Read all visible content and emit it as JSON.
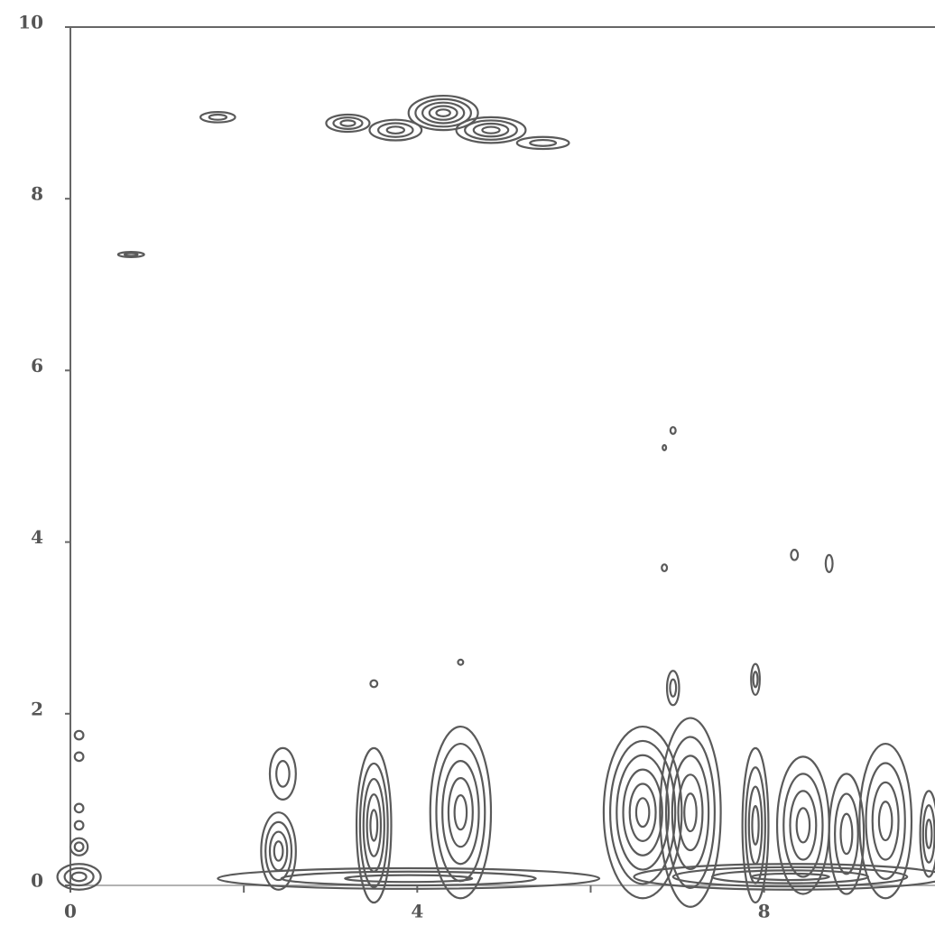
{
  "chart_data": {
    "type": "contour",
    "xlim": [
      0,
      9.95
    ],
    "ylim": [
      0,
      10
    ],
    "xticks": [
      0,
      4,
      8
    ],
    "xminorticks": [
      2,
      6
    ],
    "yticks": [
      0,
      2,
      4,
      6,
      8,
      10
    ],
    "color": "#5a5a5a",
    "peaks": [
      {
        "x": 0.1,
        "y": 0.1,
        "rx": 0.25,
        "ry": 0.15,
        "levels": 3
      },
      {
        "x": 0.1,
        "y": 0.45,
        "rx": 0.1,
        "ry": 0.1,
        "levels": 2
      },
      {
        "x": 0.1,
        "y": 0.7,
        "rx": 0.05,
        "ry": 0.05,
        "levels": 1
      },
      {
        "x": 0.1,
        "y": 0.9,
        "rx": 0.05,
        "ry": 0.05,
        "levels": 1
      },
      {
        "x": 0.1,
        "y": 1.5,
        "rx": 0.05,
        "ry": 0.05,
        "levels": 1
      },
      {
        "x": 0.1,
        "y": 1.75,
        "rx": 0.05,
        "ry": 0.05,
        "levels": 1
      },
      {
        "x": 3.9,
        "y": 0.08,
        "rx": 2.2,
        "ry": 0.12,
        "levels": 3
      },
      {
        "x": 8.3,
        "y": 0.1,
        "rx": 1.8,
        "ry": 0.15,
        "levels": 4
      },
      {
        "x": 2.4,
        "y": 0.4,
        "rx": 0.2,
        "ry": 0.45,
        "levels": 4
      },
      {
        "x": 2.45,
        "y": 1.3,
        "rx": 0.15,
        "ry": 0.3,
        "levels": 2
      },
      {
        "x": 3.5,
        "y": 0.7,
        "rx": 0.2,
        "ry": 0.9,
        "levels": 5
      },
      {
        "x": 4.5,
        "y": 0.85,
        "rx": 0.35,
        "ry": 1.0,
        "levels": 5
      },
      {
        "x": 6.6,
        "y": 0.85,
        "rx": 0.45,
        "ry": 1.0,
        "levels": 6
      },
      {
        "x": 7.15,
        "y": 0.85,
        "rx": 0.35,
        "ry": 1.1,
        "levels": 5
      },
      {
        "x": 7.9,
        "y": 0.7,
        "rx": 0.15,
        "ry": 0.9,
        "levels": 4
      },
      {
        "x": 8.45,
        "y": 0.7,
        "rx": 0.3,
        "ry": 0.8,
        "levels": 4
      },
      {
        "x": 8.95,
        "y": 0.6,
        "rx": 0.2,
        "ry": 0.7,
        "levels": 3
      },
      {
        "x": 9.4,
        "y": 0.75,
        "rx": 0.3,
        "ry": 0.9,
        "levels": 4
      },
      {
        "x": 9.9,
        "y": 0.6,
        "rx": 0.1,
        "ry": 0.5,
        "levels": 3
      },
      {
        "x": 6.95,
        "y": 2.3,
        "rx": 0.07,
        "ry": 0.2,
        "levels": 2
      },
      {
        "x": 7.9,
        "y": 2.4,
        "rx": 0.05,
        "ry": 0.18,
        "levels": 2
      },
      {
        "x": 6.95,
        "y": 5.3,
        "rx": 0.03,
        "ry": 0.04,
        "levels": 1
      },
      {
        "x": 6.85,
        "y": 5.1,
        "rx": 0.02,
        "ry": 0.03,
        "levels": 1
      },
      {
        "x": 6.85,
        "y": 3.7,
        "rx": 0.03,
        "ry": 0.04,
        "levels": 1
      },
      {
        "x": 8.35,
        "y": 3.85,
        "rx": 0.04,
        "ry": 0.06,
        "levels": 1
      },
      {
        "x": 8.75,
        "y": 3.75,
        "rx": 0.04,
        "ry": 0.1,
        "levels": 1
      },
      {
        "x": 3.5,
        "y": 2.35,
        "rx": 0.04,
        "ry": 0.04,
        "levels": 1
      },
      {
        "x": 4.5,
        "y": 2.6,
        "rx": 0.03,
        "ry": 0.03,
        "levels": 1
      },
      {
        "x": 0.7,
        "y": 7.35,
        "rx": 0.15,
        "ry": 0.03,
        "levels": 2
      },
      {
        "x": 1.7,
        "y": 8.95,
        "rx": 0.2,
        "ry": 0.06,
        "levels": 2
      },
      {
        "x": 3.2,
        "y": 8.88,
        "rx": 0.25,
        "ry": 0.1,
        "levels": 3
      },
      {
        "x": 3.75,
        "y": 8.8,
        "rx": 0.3,
        "ry": 0.12,
        "levels": 3
      },
      {
        "x": 4.3,
        "y": 9.0,
        "rx": 0.4,
        "ry": 0.2,
        "levels": 5
      },
      {
        "x": 4.85,
        "y": 8.8,
        "rx": 0.4,
        "ry": 0.15,
        "levels": 4
      },
      {
        "x": 5.45,
        "y": 8.65,
        "rx": 0.3,
        "ry": 0.07,
        "levels": 2
      }
    ]
  }
}
